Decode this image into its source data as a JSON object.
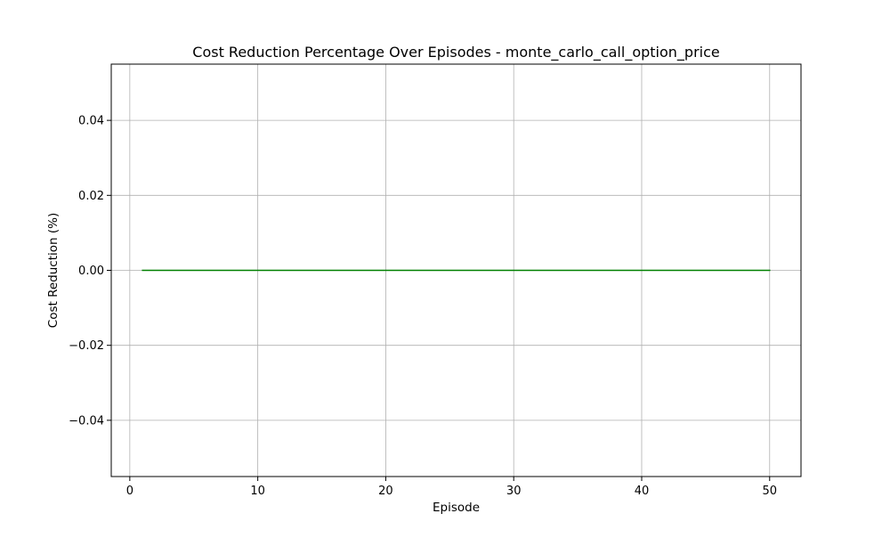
{
  "chart_data": {
    "type": "line",
    "title": "Cost Reduction Percentage Over Episodes - monte_carlo_call_option_price",
    "xlabel": "Episode",
    "ylabel": "Cost Reduction (%)",
    "xlim": [
      -1.45,
      52.45
    ],
    "ylim": [
      -0.055,
      0.055
    ],
    "xticks": [
      0,
      10,
      20,
      30,
      40,
      50
    ],
    "xtick_labels": [
      "0",
      "10",
      "20",
      "30",
      "40",
      "50"
    ],
    "yticks": [
      0.04,
      0.02,
      0.0,
      -0.02,
      -0.04
    ],
    "ytick_labels": [
      "0.04",
      "0.02",
      "0.00",
      "−0.02",
      "−0.04"
    ],
    "grid": true,
    "series": [
      {
        "color": "#008000",
        "x": [
          1,
          2,
          3,
          4,
          5,
          6,
          7,
          8,
          9,
          10,
          11,
          12,
          13,
          14,
          15,
          16,
          17,
          18,
          19,
          20,
          21,
          22,
          23,
          24,
          25,
          26,
          27,
          28,
          29,
          30,
          31,
          32,
          33,
          34,
          35,
          36,
          37,
          38,
          39,
          40,
          41,
          42,
          43,
          44,
          45,
          46,
          47,
          48,
          49,
          50
        ],
        "y": [
          0,
          0,
          0,
          0,
          0,
          0,
          0,
          0,
          0,
          0,
          0,
          0,
          0,
          0,
          0,
          0,
          0,
          0,
          0,
          0,
          0,
          0,
          0,
          0,
          0,
          0,
          0,
          0,
          0,
          0,
          0,
          0,
          0,
          0,
          0,
          0,
          0,
          0,
          0,
          0,
          0,
          0,
          0,
          0,
          0,
          0,
          0,
          0,
          0,
          0
        ]
      }
    ]
  }
}
